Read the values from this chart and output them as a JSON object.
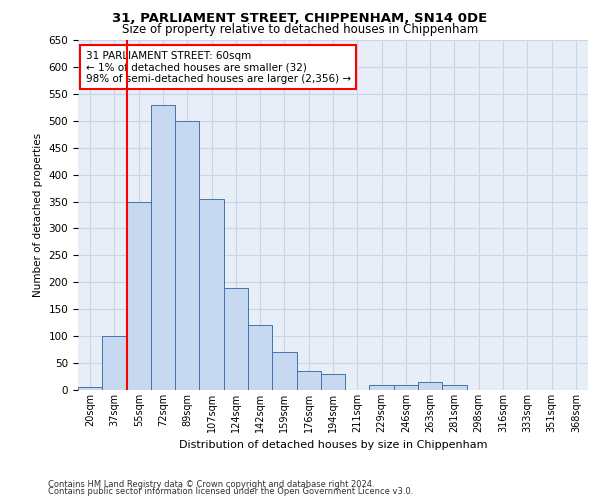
{
  "title_line1": "31, PARLIAMENT STREET, CHIPPENHAM, SN14 0DE",
  "title_line2": "Size of property relative to detached houses in Chippenham",
  "xlabel": "Distribution of detached houses by size in Chippenham",
  "ylabel": "Number of detached properties",
  "categories": [
    "20sqm",
    "37sqm",
    "55sqm",
    "72sqm",
    "89sqm",
    "107sqm",
    "124sqm",
    "142sqm",
    "159sqm",
    "176sqm",
    "194sqm",
    "211sqm",
    "229sqm",
    "246sqm",
    "263sqm",
    "281sqm",
    "298sqm",
    "316sqm",
    "333sqm",
    "351sqm",
    "368sqm"
  ],
  "values": [
    5,
    100,
    350,
    530,
    500,
    355,
    190,
    120,
    70,
    35,
    30,
    0,
    10,
    10,
    15,
    10,
    0,
    0,
    0,
    0,
    0
  ],
  "bar_color": "#c6d9f0",
  "bar_edge_color": "#4472a8",
  "red_line_x": 1.5,
  "annotation_box_text": "31 PARLIAMENT STREET: 60sqm\n← 1% of detached houses are smaller (32)\n98% of semi-detached houses are larger (2,356) →",
  "ylim": [
    0,
    650
  ],
  "grid_color": "#c8d4e8",
  "background_color": "#e8eef8",
  "footer_line1": "Contains HM Land Registry data © Crown copyright and database right 2024.",
  "footer_line2": "Contains public sector information licensed under the Open Government Licence v3.0."
}
